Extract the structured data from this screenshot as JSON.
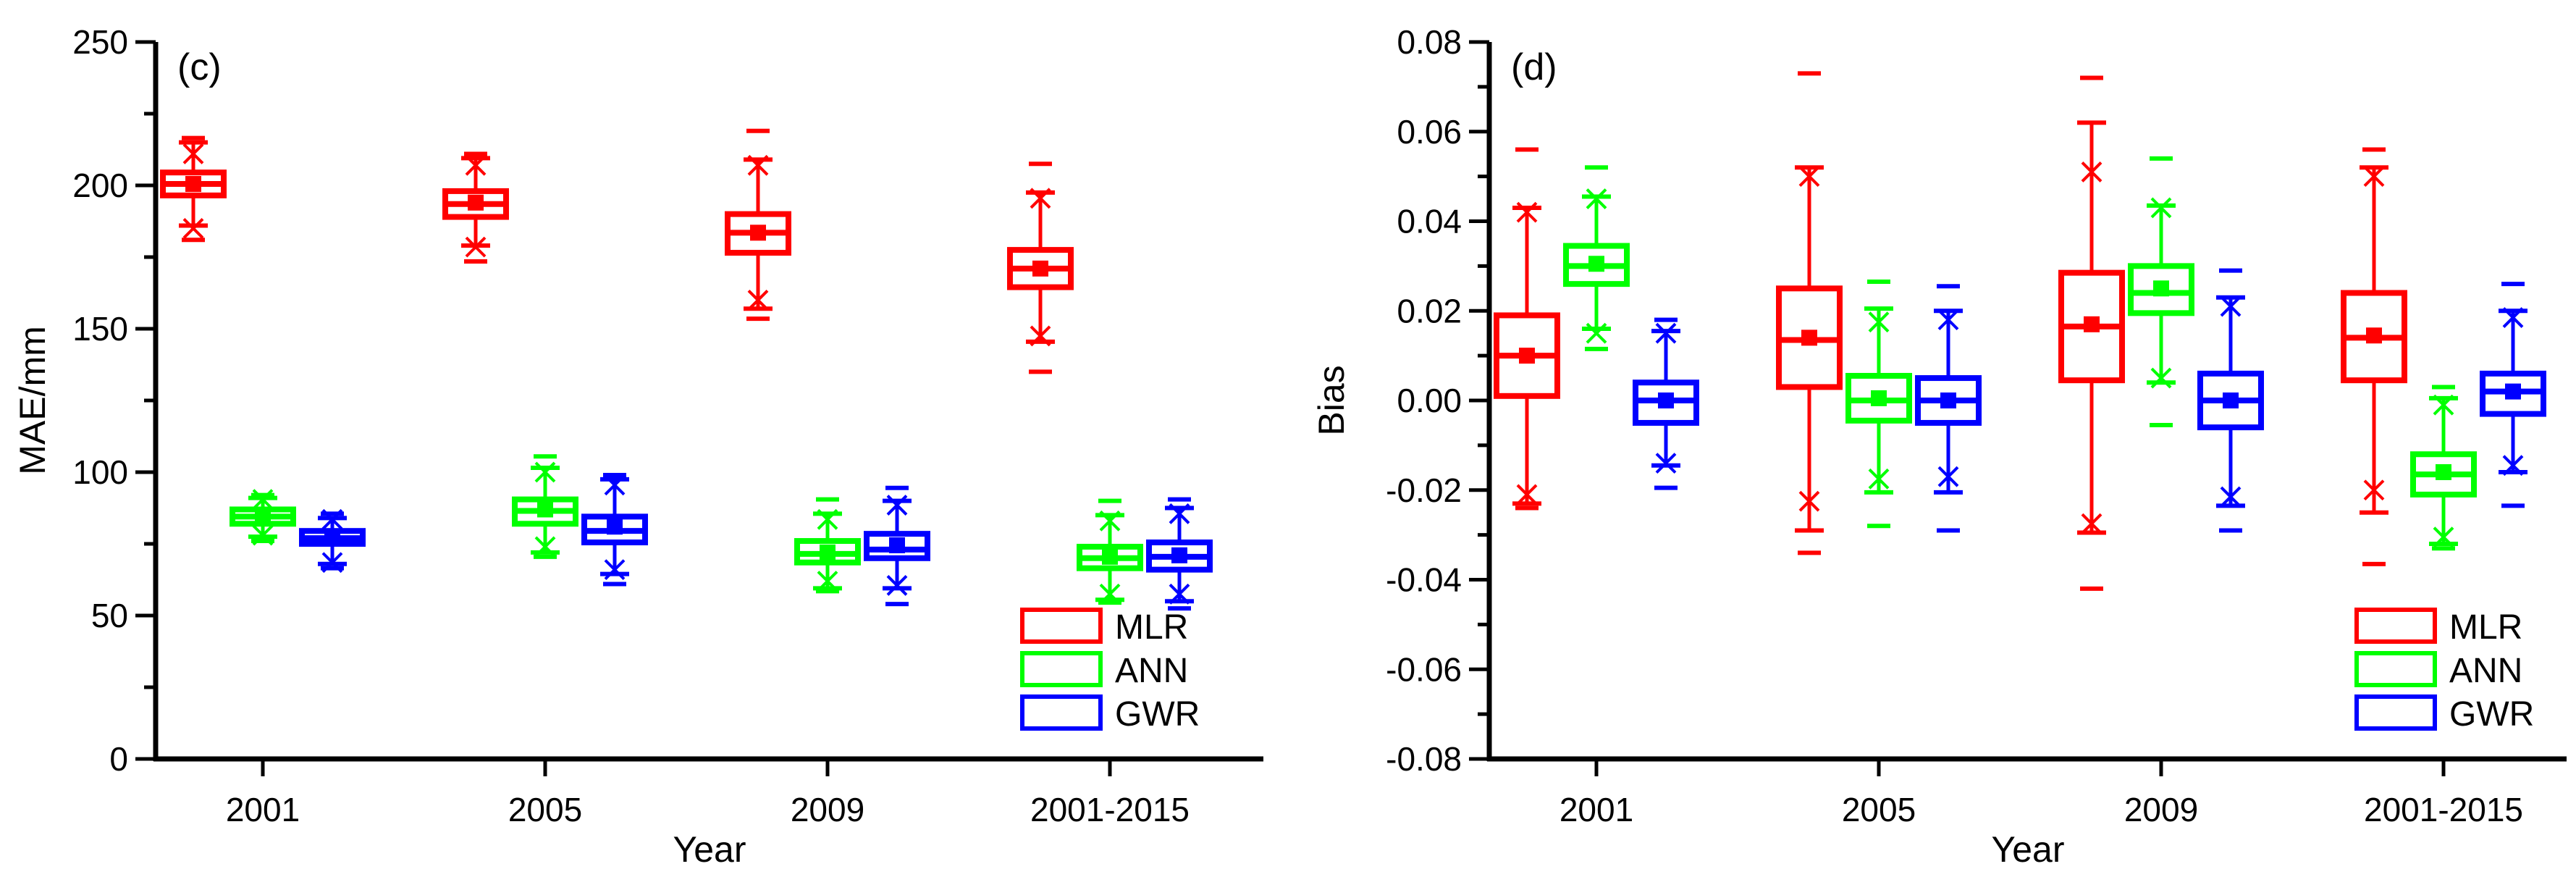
{
  "figure": {
    "background": "#ffffff",
    "axis_color": "#000000",
    "series_colors": {
      "MLR": "#ff0000",
      "ANN": "#00ff00",
      "GWR": "#0000ff"
    }
  },
  "chart_data": [
    {
      "id": "c",
      "type": "box",
      "panel_label": "(c)",
      "xlabel": "Year",
      "ylabel": "MAE/mm",
      "ylim": [
        0,
        250
      ],
      "ytick_major": 50,
      "ytick_minor": 25,
      "ytick_labels": [
        "0",
        "50",
        "100",
        "150",
        "200",
        "250"
      ],
      "grid": false,
      "legend_position": "bottom-right-inside",
      "legend": [
        "MLR",
        "ANN",
        "GWR"
      ],
      "categories": [
        "2001",
        "2005",
        "2009",
        "2001-2015"
      ],
      "series": [
        {
          "name": "MLR",
          "color": "#ff0000",
          "boxes": [
            {
              "dash_low": 181,
              "x_low": 185,
              "whisker_low": 186,
              "q1": 196.5,
              "median": 200.5,
              "mean": 200.5,
              "q3": 204.5,
              "whisker_high": 215,
              "x_high": 211,
              "dash_high": 216.5
            },
            {
              "dash_low": 173.5,
              "x_low": 178.5,
              "whisker_low": 179,
              "q1": 189,
              "median": 193.5,
              "mean": 194,
              "q3": 198,
              "whisker_high": 209.5,
              "x_high": 207,
              "dash_high": 211
            },
            {
              "dash_low": 153.5,
              "x_low": 160,
              "whisker_low": 157,
              "q1": 176.5,
              "median": 183.5,
              "mean": 183.5,
              "q3": 190,
              "whisker_high": 209,
              "x_high": 207,
              "dash_high": 219
            },
            {
              "dash_low": 135,
              "x_low": 147.5,
              "whisker_low": 145.5,
              "q1": 164.5,
              "median": 171,
              "mean": 171,
              "q3": 177.5,
              "whisker_high": 197.5,
              "x_high": 195.5,
              "dash_high": 207.5
            }
          ]
        },
        {
          "name": "ANN",
          "color": "#00ff00",
          "boxes": [
            {
              "dash_low": 76,
              "x_low": 78,
              "whisker_low": 77.5,
              "q1": 82,
              "median": 84.5,
              "mean": 85,
              "q3": 87,
              "whisker_high": 91,
              "x_high": 90.5,
              "dash_high": 92
            },
            {
              "dash_low": 70.5,
              "x_low": 74,
              "whisker_low": 72,
              "q1": 82,
              "median": 86.5,
              "mean": 87,
              "q3": 90.5,
              "whisker_high": 101.5,
              "x_high": 100,
              "dash_high": 105.5
            },
            {
              "dash_low": 58.5,
              "x_low": 62,
              "whisker_low": 59.5,
              "q1": 68.5,
              "median": 71.5,
              "mean": 72,
              "q3": 76,
              "whisker_high": 85.5,
              "x_high": 83.5,
              "dash_high": 90.5
            },
            {
              "dash_low": 54.5,
              "x_low": 57.5,
              "whisker_low": 55.5,
              "q1": 66.5,
              "median": 70,
              "mean": 70.5,
              "q3": 74,
              "whisker_high": 85,
              "x_high": 83,
              "dash_high": 90
            }
          ]
        },
        {
          "name": "GWR",
          "color": "#0000ff",
          "boxes": [
            {
              "dash_low": 66.5,
              "x_low": 68.5,
              "whisker_low": 68,
              "q1": 75,
              "median": 77,
              "mean": 77,
              "q3": 79.5,
              "whisker_high": 84,
              "x_high": 83.5,
              "dash_high": 85.5
            },
            {
              "dash_low": 61,
              "x_low": 66,
              "whisker_low": 64.5,
              "q1": 75.5,
              "median": 79.5,
              "mean": 81,
              "q3": 84.5,
              "whisker_high": 97.5,
              "x_high": 95.5,
              "dash_high": 99
            },
            {
              "dash_low": 54,
              "x_low": 60.5,
              "whisker_low": 59.5,
              "q1": 70,
              "median": 73,
              "mean": 74.5,
              "q3": 78.5,
              "whisker_high": 90,
              "x_high": 88.5,
              "dash_high": 94.5
            },
            {
              "dash_low": 52.5,
              "x_low": 57.5,
              "whisker_low": 55,
              "q1": 66,
              "median": 70.5,
              "mean": 71,
              "q3": 75.5,
              "whisker_high": 87.5,
              "x_high": 85.5,
              "dash_high": 90.5
            }
          ]
        }
      ]
    },
    {
      "id": "d",
      "type": "box",
      "panel_label": "(d)",
      "xlabel": "Year",
      "ylabel": "Bias",
      "ylim": [
        -0.08,
        0.08
      ],
      "ytick_major": 0.02,
      "ytick_minor": 0.01,
      "ytick_labels": [
        "-0.08",
        "-0.06",
        "-0.04",
        "-0.02",
        "0.00",
        "0.02",
        "0.04",
        "0.06",
        "0.08"
      ],
      "grid": false,
      "legend_position": "bottom-right-inside",
      "legend": [
        "MLR",
        "ANN",
        "GWR"
      ],
      "categories": [
        "2001",
        "2005",
        "2009",
        "2001-2015"
      ],
      "series": [
        {
          "name": "MLR",
          "color": "#ff0000",
          "boxes": [
            {
              "dash_low": -0.024,
              "x_low": -0.021,
              "whisker_low": -0.023,
              "q1": 0.001,
              "median": 0.01,
              "mean": 0.01,
              "q3": 0.019,
              "whisker_high": 0.043,
              "x_high": 0.042,
              "dash_high": 0.056
            },
            {
              "dash_low": -0.034,
              "x_low": -0.0225,
              "whisker_low": -0.029,
              "q1": 0.003,
              "median": 0.0135,
              "mean": 0.014,
              "q3": 0.025,
              "whisker_high": 0.052,
              "x_high": 0.05,
              "dash_high": 0.073
            },
            {
              "dash_low": -0.042,
              "x_low": -0.0275,
              "whisker_low": -0.0295,
              "q1": 0.0045,
              "median": 0.0165,
              "mean": 0.017,
              "q3": 0.0285,
              "whisker_high": 0.062,
              "x_high": 0.051,
              "dash_high": 0.072
            },
            {
              "dash_low": -0.0365,
              "x_low": -0.02,
              "whisker_low": -0.025,
              "q1": 0.0045,
              "median": 0.014,
              "mean": 0.0145,
              "q3": 0.024,
              "whisker_high": 0.052,
              "x_high": 0.05,
              "dash_high": 0.056
            }
          ]
        },
        {
          "name": "ANN",
          "color": "#00ff00",
          "boxes": [
            {
              "dash_low": 0.0115,
              "x_low": 0.015,
              "whisker_low": 0.016,
              "q1": 0.026,
              "median": 0.03,
              "mean": 0.0305,
              "q3": 0.0345,
              "whisker_high": 0.0455,
              "x_high": 0.045,
              "dash_high": 0.052
            },
            {
              "dash_low": -0.028,
              "x_low": -0.0175,
              "whisker_low": -0.0205,
              "q1": -0.0045,
              "median": 0.0,
              "mean": 0.0005,
              "q3": 0.0055,
              "whisker_high": 0.0205,
              "x_high": 0.0175,
              "dash_high": 0.0265
            },
            {
              "dash_low": -0.0055,
              "x_low": 0.005,
              "whisker_low": 0.004,
              "q1": 0.0195,
              "median": 0.024,
              "mean": 0.025,
              "q3": 0.03,
              "whisker_high": 0.0435,
              "x_high": 0.043,
              "dash_high": 0.054
            },
            {
              "dash_low": -0.033,
              "x_low": -0.0305,
              "whisker_low": -0.032,
              "q1": -0.021,
              "median": -0.0165,
              "mean": -0.016,
              "q3": -0.012,
              "whisker_high": 0.0005,
              "x_high": -0.001,
              "dash_high": 0.003
            }
          ]
        },
        {
          "name": "GWR",
          "color": "#0000ff",
          "boxes": [
            {
              "dash_low": -0.0195,
              "x_low": -0.014,
              "whisker_low": -0.0145,
              "q1": -0.005,
              "median": 0.0,
              "mean": 0.0,
              "q3": 0.004,
              "whisker_high": 0.0155,
              "x_high": 0.015,
              "dash_high": 0.018
            },
            {
              "dash_low": -0.029,
              "x_low": -0.017,
              "whisker_low": -0.0205,
              "q1": -0.005,
              "median": 0.0,
              "mean": 0.0,
              "q3": 0.005,
              "whisker_high": 0.02,
              "x_high": 0.018,
              "dash_high": 0.0255
            },
            {
              "dash_low": -0.029,
              "x_low": -0.0215,
              "whisker_low": -0.0235,
              "q1": -0.006,
              "median": 0.0,
              "mean": 0.0,
              "q3": 0.006,
              "whisker_high": 0.023,
              "x_high": 0.021,
              "dash_high": 0.029
            },
            {
              "dash_low": -0.0235,
              "x_low": -0.0145,
              "whisker_low": -0.016,
              "q1": -0.003,
              "median": 0.002,
              "mean": 0.002,
              "q3": 0.006,
              "whisker_high": 0.02,
              "x_high": 0.0185,
              "dash_high": 0.026
            }
          ]
        }
      ]
    }
  ]
}
